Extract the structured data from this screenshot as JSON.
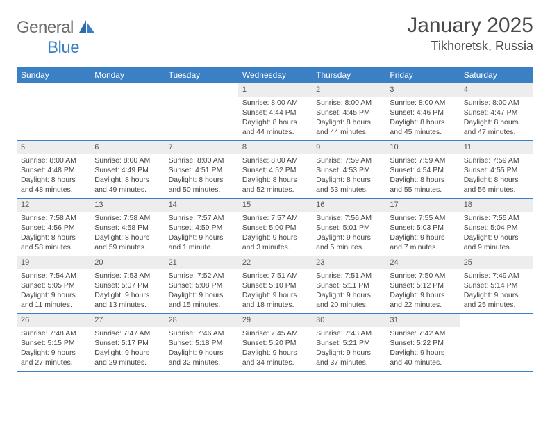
{
  "brand": {
    "part1": "General",
    "part2": "Blue"
  },
  "title": "January 2025",
  "location": "Tikhoretsk, Russia",
  "colors": {
    "header_bg": "#3b7fc4",
    "header_text": "#ffffff",
    "daynum_bg": "#ededed",
    "text": "#444444",
    "logo_gray": "#6a6a6a",
    "logo_blue": "#3b7fc4"
  },
  "weekdays": [
    "Sunday",
    "Monday",
    "Tuesday",
    "Wednesday",
    "Thursday",
    "Friday",
    "Saturday"
  ],
  "weeks": [
    [
      null,
      null,
      null,
      {
        "n": "1",
        "sunrise": "8:00 AM",
        "sunset": "4:44 PM",
        "dl1": "Daylight: 8 hours",
        "dl2": "and 44 minutes."
      },
      {
        "n": "2",
        "sunrise": "8:00 AM",
        "sunset": "4:45 PM",
        "dl1": "Daylight: 8 hours",
        "dl2": "and 44 minutes."
      },
      {
        "n": "3",
        "sunrise": "8:00 AM",
        "sunset": "4:46 PM",
        "dl1": "Daylight: 8 hours",
        "dl2": "and 45 minutes."
      },
      {
        "n": "4",
        "sunrise": "8:00 AM",
        "sunset": "4:47 PM",
        "dl1": "Daylight: 8 hours",
        "dl2": "and 47 minutes."
      }
    ],
    [
      {
        "n": "5",
        "sunrise": "8:00 AM",
        "sunset": "4:48 PM",
        "dl1": "Daylight: 8 hours",
        "dl2": "and 48 minutes."
      },
      {
        "n": "6",
        "sunrise": "8:00 AM",
        "sunset": "4:49 PM",
        "dl1": "Daylight: 8 hours",
        "dl2": "and 49 minutes."
      },
      {
        "n": "7",
        "sunrise": "8:00 AM",
        "sunset": "4:51 PM",
        "dl1": "Daylight: 8 hours",
        "dl2": "and 50 minutes."
      },
      {
        "n": "8",
        "sunrise": "8:00 AM",
        "sunset": "4:52 PM",
        "dl1": "Daylight: 8 hours",
        "dl2": "and 52 minutes."
      },
      {
        "n": "9",
        "sunrise": "7:59 AM",
        "sunset": "4:53 PM",
        "dl1": "Daylight: 8 hours",
        "dl2": "and 53 minutes."
      },
      {
        "n": "10",
        "sunrise": "7:59 AM",
        "sunset": "4:54 PM",
        "dl1": "Daylight: 8 hours",
        "dl2": "and 55 minutes."
      },
      {
        "n": "11",
        "sunrise": "7:59 AM",
        "sunset": "4:55 PM",
        "dl1": "Daylight: 8 hours",
        "dl2": "and 56 minutes."
      }
    ],
    [
      {
        "n": "12",
        "sunrise": "7:58 AM",
        "sunset": "4:56 PM",
        "dl1": "Daylight: 8 hours",
        "dl2": "and 58 minutes."
      },
      {
        "n": "13",
        "sunrise": "7:58 AM",
        "sunset": "4:58 PM",
        "dl1": "Daylight: 8 hours",
        "dl2": "and 59 minutes."
      },
      {
        "n": "14",
        "sunrise": "7:57 AM",
        "sunset": "4:59 PM",
        "dl1": "Daylight: 9 hours",
        "dl2": "and 1 minute."
      },
      {
        "n": "15",
        "sunrise": "7:57 AM",
        "sunset": "5:00 PM",
        "dl1": "Daylight: 9 hours",
        "dl2": "and 3 minutes."
      },
      {
        "n": "16",
        "sunrise": "7:56 AM",
        "sunset": "5:01 PM",
        "dl1": "Daylight: 9 hours",
        "dl2": "and 5 minutes."
      },
      {
        "n": "17",
        "sunrise": "7:55 AM",
        "sunset": "5:03 PM",
        "dl1": "Daylight: 9 hours",
        "dl2": "and 7 minutes."
      },
      {
        "n": "18",
        "sunrise": "7:55 AM",
        "sunset": "5:04 PM",
        "dl1": "Daylight: 9 hours",
        "dl2": "and 9 minutes."
      }
    ],
    [
      {
        "n": "19",
        "sunrise": "7:54 AM",
        "sunset": "5:05 PM",
        "dl1": "Daylight: 9 hours",
        "dl2": "and 11 minutes."
      },
      {
        "n": "20",
        "sunrise": "7:53 AM",
        "sunset": "5:07 PM",
        "dl1": "Daylight: 9 hours",
        "dl2": "and 13 minutes."
      },
      {
        "n": "21",
        "sunrise": "7:52 AM",
        "sunset": "5:08 PM",
        "dl1": "Daylight: 9 hours",
        "dl2": "and 15 minutes."
      },
      {
        "n": "22",
        "sunrise": "7:51 AM",
        "sunset": "5:10 PM",
        "dl1": "Daylight: 9 hours",
        "dl2": "and 18 minutes."
      },
      {
        "n": "23",
        "sunrise": "7:51 AM",
        "sunset": "5:11 PM",
        "dl1": "Daylight: 9 hours",
        "dl2": "and 20 minutes."
      },
      {
        "n": "24",
        "sunrise": "7:50 AM",
        "sunset": "5:12 PM",
        "dl1": "Daylight: 9 hours",
        "dl2": "and 22 minutes."
      },
      {
        "n": "25",
        "sunrise": "7:49 AM",
        "sunset": "5:14 PM",
        "dl1": "Daylight: 9 hours",
        "dl2": "and 25 minutes."
      }
    ],
    [
      {
        "n": "26",
        "sunrise": "7:48 AM",
        "sunset": "5:15 PM",
        "dl1": "Daylight: 9 hours",
        "dl2": "and 27 minutes."
      },
      {
        "n": "27",
        "sunrise": "7:47 AM",
        "sunset": "5:17 PM",
        "dl1": "Daylight: 9 hours",
        "dl2": "and 29 minutes."
      },
      {
        "n": "28",
        "sunrise": "7:46 AM",
        "sunset": "5:18 PM",
        "dl1": "Daylight: 9 hours",
        "dl2": "and 32 minutes."
      },
      {
        "n": "29",
        "sunrise": "7:45 AM",
        "sunset": "5:20 PM",
        "dl1": "Daylight: 9 hours",
        "dl2": "and 34 minutes."
      },
      {
        "n": "30",
        "sunrise": "7:43 AM",
        "sunset": "5:21 PM",
        "dl1": "Daylight: 9 hours",
        "dl2": "and 37 minutes."
      },
      {
        "n": "31",
        "sunrise": "7:42 AM",
        "sunset": "5:22 PM",
        "dl1": "Daylight: 9 hours",
        "dl2": "and 40 minutes."
      },
      null
    ]
  ],
  "labels": {
    "sunrise_prefix": "Sunrise: ",
    "sunset_prefix": "Sunset: "
  }
}
